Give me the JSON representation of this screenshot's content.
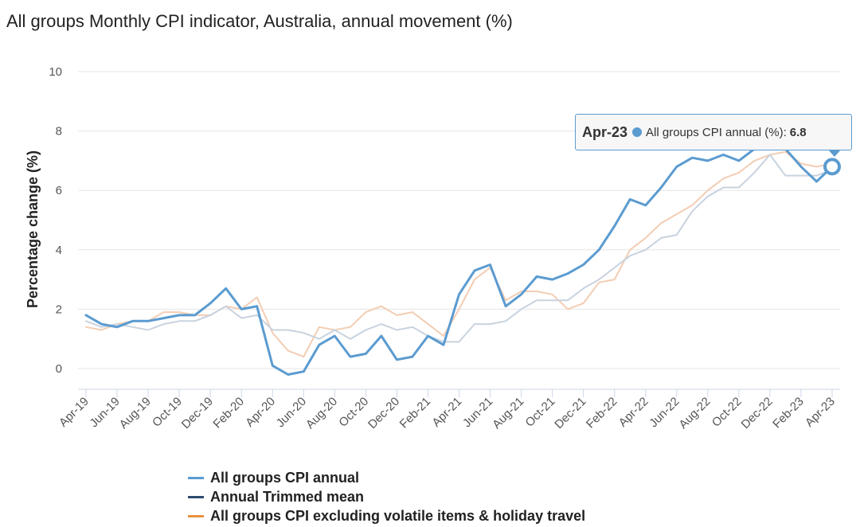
{
  "chart_data": {
    "type": "line",
    "title": "All groups Monthly CPI indicator, Australia, annual movement (%)",
    "xlabel": "",
    "ylabel": "Percentage change (%)",
    "ylim": [
      -0.7,
      10
    ],
    "yticks": [
      0,
      2,
      4,
      6,
      8,
      10
    ],
    "grid": true,
    "legend_position": "bottom",
    "x": [
      "Apr-19",
      "May-19",
      "Jun-19",
      "Jul-19",
      "Aug-19",
      "Sep-19",
      "Oct-19",
      "Nov-19",
      "Dec-19",
      "Jan-20",
      "Feb-20",
      "Mar-20",
      "Apr-20",
      "May-20",
      "Jun-20",
      "Jul-20",
      "Aug-20",
      "Sep-20",
      "Oct-20",
      "Nov-20",
      "Dec-20",
      "Jan-21",
      "Feb-21",
      "Mar-21",
      "Apr-21",
      "May-21",
      "Jun-21",
      "Jul-21",
      "Aug-21",
      "Sep-21",
      "Oct-21",
      "Nov-21",
      "Dec-21",
      "Jan-22",
      "Feb-22",
      "Mar-22",
      "Apr-22",
      "May-22",
      "Jun-22",
      "Jul-22",
      "Aug-22",
      "Sep-22",
      "Oct-22",
      "Nov-22",
      "Dec-22",
      "Jan-23",
      "Feb-23",
      "Mar-23",
      "Apr-23"
    ],
    "x_tick_labels": [
      "Apr-19",
      "Jun-19",
      "Aug-19",
      "Oct-19",
      "Dec-19",
      "Feb-20",
      "Apr-20",
      "Jun-20",
      "Aug-20",
      "Oct-20",
      "Dec-20",
      "Feb-21",
      "Apr-21",
      "Jun-21",
      "Aug-21",
      "Oct-21",
      "Dec-21",
      "Feb-22",
      "Apr-22",
      "Jun-22",
      "Aug-22",
      "Oct-22",
      "Dec-22",
      "Feb-23",
      "Apr-23"
    ],
    "series": [
      {
        "name": "All groups CPI annual",
        "color": "#5b9bd0",
        "values": [
          1.8,
          1.5,
          1.4,
          1.6,
          1.6,
          1.7,
          1.8,
          1.8,
          2.2,
          2.7,
          2.0,
          2.1,
          0.1,
          -0.2,
          -0.1,
          0.8,
          1.1,
          0.4,
          0.5,
          1.1,
          0.3,
          0.4,
          1.1,
          0.8,
          2.5,
          3.3,
          3.5,
          2.1,
          2.5,
          3.1,
          3.0,
          3.2,
          3.5,
          4.0,
          4.8,
          5.7,
          5.5,
          6.1,
          6.8,
          7.1,
          7.0,
          7.2,
          7.0,
          7.4,
          8.4,
          7.4,
          6.8,
          6.3,
          6.8
        ]
      },
      {
        "name": "Annual Trimmed mean",
        "color": "#c8d3df",
        "values": [
          1.6,
          1.4,
          1.5,
          1.4,
          1.3,
          1.5,
          1.6,
          1.6,
          1.8,
          2.1,
          1.7,
          1.8,
          1.3,
          1.3,
          1.2,
          1.0,
          1.3,
          1.0,
          1.3,
          1.5,
          1.3,
          1.4,
          1.1,
          0.9,
          0.9,
          1.5,
          1.5,
          1.6,
          2.0,
          2.3,
          2.3,
          2.3,
          2.7,
          3.0,
          3.4,
          3.8,
          4.0,
          4.4,
          4.5,
          5.3,
          5.8,
          6.1,
          6.1,
          6.6,
          7.2,
          6.5,
          6.5,
          6.5,
          6.7
        ]
      },
      {
        "name": "All groups CPI excluding volatile items & holiday travel",
        "color": "#f3cdb3",
        "values": [
          1.4,
          1.3,
          1.5,
          1.6,
          1.6,
          1.9,
          1.9,
          1.8,
          1.8,
          2.1,
          2.0,
          2.4,
          1.2,
          0.6,
          0.4,
          1.4,
          1.3,
          1.4,
          1.9,
          2.1,
          1.8,
          1.9,
          1.5,
          1.1,
          2.0,
          3.0,
          3.4,
          2.3,
          2.6,
          2.6,
          2.5,
          2.0,
          2.2,
          2.9,
          3.0,
          4.0,
          4.4,
          4.9,
          5.2,
          5.5,
          6.0,
          6.4,
          6.6,
          7.0,
          7.2,
          7.3,
          6.9,
          6.8,
          6.9
        ]
      }
    ],
    "highlight": {
      "date": "Apr-23",
      "series_label": "All groups CPI annual (%):",
      "value": "6.8"
    }
  },
  "legend": {
    "items": [
      {
        "label": "All groups CPI annual",
        "color": "#5b9bd0"
      },
      {
        "label": "Annual Trimmed mean",
        "color": "#2c4a6e"
      },
      {
        "label": "All groups CPI excluding volatile items & holiday travel",
        "color": "#e8913f"
      }
    ]
  }
}
